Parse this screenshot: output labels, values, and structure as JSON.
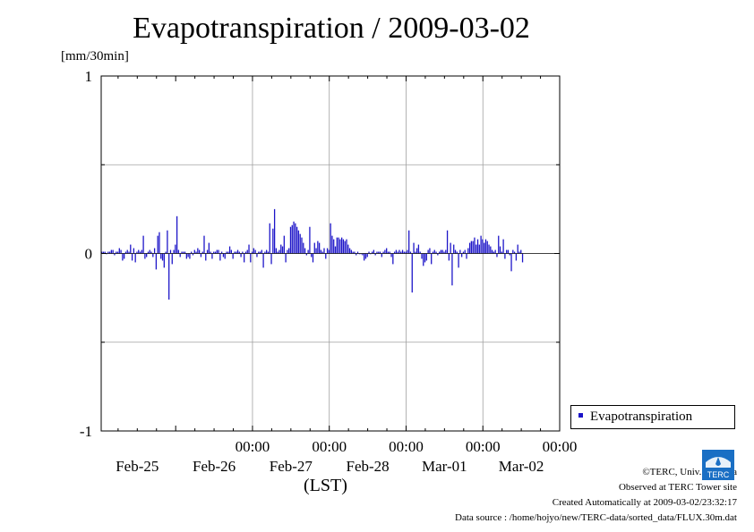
{
  "title": "Evapotranspiration / 2009-03-02",
  "unit_label": "[mm/30min]",
  "xaxis_label": "(LST)",
  "legend_label": "Evapotranspiration",
  "series_color": "#1c14c8",
  "credits": {
    "copyright": "©TERC, Univ. Tsukuba",
    "observed": "Observed at TERC Tower site",
    "created": "Created Automatically at 2009-03-02/23:32:17",
    "source": "Data source : /home/hojyo/new/TERC-data/sorted_data/FLUX.30m.dat"
  },
  "logo_text": "TERC",
  "chart_data": {
    "type": "bar",
    "title": "Evapotranspiration / 2009-03-02",
    "ylabel": "[mm/30min]",
    "xlabel": "(LST)",
    "ylim": [
      -1,
      1
    ],
    "yticks": [
      -1,
      0,
      1
    ],
    "xlim": [
      -0.97,
      5.0
    ],
    "time_ticks": [
      "00:00",
      "00:00",
      "00:00",
      "00:00",
      "00:00"
    ],
    "time_tick_positions": [
      1,
      2,
      3,
      4,
      5
    ],
    "date_labels": [
      "Feb-25",
      "Feb-26",
      "Feb-27",
      "Feb-28",
      "Mar-01",
      "Mar-02"
    ],
    "date_label_positions": [
      0.5,
      1.5,
      2.5,
      3.5,
      4.5,
      5.5
    ],
    "grid": true,
    "legend": "right",
    "series": [
      {
        "name": "Evapotranspiration",
        "step_days": 0.0208333,
        "values": [
          0.01,
          0.01,
          0.01,
          0,
          0.01,
          0.01,
          0.02,
          0.02,
          -0.01,
          0.01,
          0.01,
          0.03,
          0.02,
          -0.04,
          -0.03,
          0.01,
          0.02,
          0.01,
          0.05,
          -0.04,
          0.03,
          -0.05,
          0.01,
          0.02,
          0.01,
          0.02,
          0.1,
          -0.03,
          -0.02,
          0.01,
          0.02,
          0.01,
          -0.02,
          0.03,
          -0.09,
          0.1,
          0.12,
          -0.03,
          -0.04,
          -0.08,
          0.01,
          0.13,
          -0.26,
          0.02,
          -0.06,
          0.02,
          0.05,
          0.21,
          0.02,
          -0.02,
          0.01,
          0.01,
          0.01,
          -0.03,
          -0.02,
          -0.03,
          0.01,
          -0.01,
          0.02,
          0.01,
          0.03,
          0.02,
          -0.02,
          0.01,
          0.1,
          -0.04,
          0.02,
          0.06,
          0.01,
          -0.03,
          0.01,
          0.01,
          0.02,
          0.02,
          -0.04,
          0.01,
          -0.02,
          -0.03,
          0.01,
          0.01,
          0.04,
          0.02,
          -0.03,
          0.01,
          0.01,
          0.02,
          0.01,
          -0.02,
          0.01,
          -0.05,
          0.01,
          0.02,
          0.05,
          -0.05,
          0.01,
          0.03,
          0.02,
          -0.02,
          0.01,
          0.01,
          0.02,
          -0.08,
          0.01,
          0.02,
          0.01,
          0.17,
          -0.06,
          0.14,
          0.25,
          0.03,
          0.01,
          0.02,
          0.05,
          0.04,
          0.1,
          -0.05,
          0.02,
          0.03,
          0.15,
          0.16,
          0.18,
          0.17,
          0.15,
          0.13,
          0.11,
          0.09,
          0.06,
          0.03,
          -0.01,
          0.02,
          0.15,
          -0.02,
          -0.05,
          0.06,
          0.03,
          0.07,
          0.06,
          0.02,
          0.01,
          0.03,
          -0.03,
          0.03,
          0.02,
          0.17,
          0.1,
          0.08,
          0.04,
          0.09,
          0.09,
          0.08,
          0.09,
          0.08,
          0.07,
          0.08,
          0.05,
          0.03,
          0.02,
          0.01,
          0.01,
          -0.01,
          0.01,
          0,
          0,
          -0.01,
          -0.04,
          -0.03,
          -0.02,
          0.01,
          0,
          0.01,
          0.02,
          -0.01,
          0.01,
          0.01,
          0.01,
          -0.02,
          0.01,
          0.02,
          0.03,
          0.01,
          0.01,
          -0.02,
          -0.06,
          0.01,
          0.02,
          0.01,
          0.02,
          0.01,
          0.02,
          0.01,
          0.01,
          0.02,
          0.13,
          0.01,
          -0.22,
          0.06,
          0.01,
          0.03,
          0.05,
          0.01,
          -0.03,
          -0.07,
          -0.05,
          -0.04,
          0.02,
          0.03,
          -0.06,
          0.01,
          0.02,
          0.01,
          -0.01,
          0.01,
          0.02,
          0.02,
          0.01,
          0.02,
          0.13,
          -0.04,
          0.06,
          -0.18,
          0.05,
          0.02,
          0.01,
          -0.08,
          0.02,
          -0.02,
          0.01,
          0.02,
          -0.03,
          0.03,
          0.06,
          0.07,
          0.07,
          0.09,
          0.05,
          0.08,
          0.05,
          0.1,
          0.08,
          0.06,
          0.08,
          0.07,
          0.05,
          0.04,
          0.02,
          0.01,
          0.02,
          -0.02,
          0.1,
          0.04,
          0.01,
          0.08,
          -0.03,
          0.02,
          0.02,
          -0.01,
          -0.1,
          0.02,
          0.01,
          -0.04,
          0.05,
          0.01,
          0.02,
          -0.05
        ]
      }
    ]
  }
}
